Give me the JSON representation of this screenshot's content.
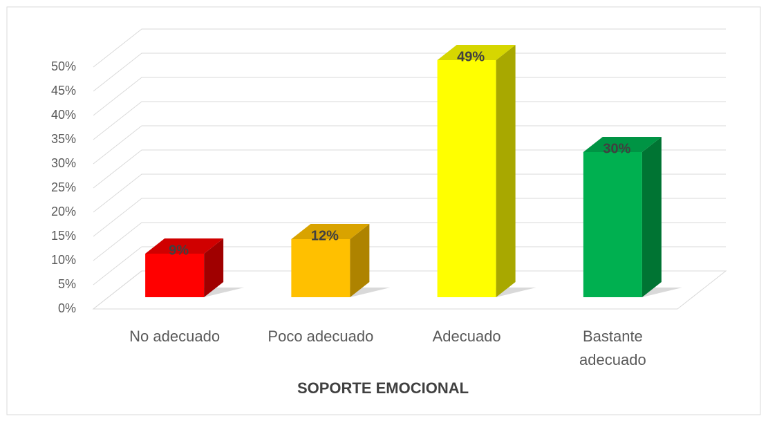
{
  "chart_data": {
    "type": "bar3d",
    "x_label": "SOPORTE EMOCIONAL",
    "categories": [
      "No adecuado",
      "Poco adecuado",
      "Adecuado",
      "Bastante adecuado"
    ],
    "values": [
      9,
      12,
      49,
      30
    ],
    "value_labels": [
      "9%",
      "12%",
      "49%",
      "30%"
    ],
    "colors": [
      "#ff0000",
      "#ffc000",
      "#ffff00",
      "#00b050"
    ],
    "side_colors": [
      "#a00000",
      "#ae8300",
      "#a8a800",
      "#007433"
    ],
    "top_colors": [
      "#d00000",
      "#d9a300",
      "#d6d600",
      "#009444"
    ],
    "ylim": [
      0,
      50
    ],
    "yticks": [
      {
        "value": 0,
        "label": "0%"
      },
      {
        "value": 5,
        "label": "5%"
      },
      {
        "value": 10,
        "label": "10%"
      },
      {
        "value": 15,
        "label": "15%"
      },
      {
        "value": 20,
        "label": "20%"
      },
      {
        "value": 25,
        "label": "25%"
      },
      {
        "value": 30,
        "label": "30%"
      },
      {
        "value": 35,
        "label": "35%"
      },
      {
        "value": 40,
        "label": "40%"
      },
      {
        "value": 45,
        "label": "45%"
      },
      {
        "value": 50,
        "label": "50%"
      }
    ],
    "grid": true
  }
}
